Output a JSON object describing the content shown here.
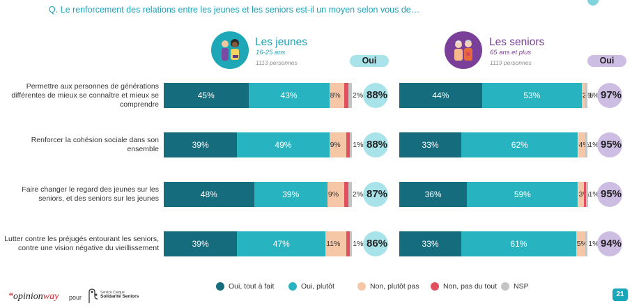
{
  "question": "Q. Le renforcement des relations entre les jeunes et les seniors est-il un moyen selon vous de…",
  "groups": [
    {
      "title": "Les jeunes",
      "subtitle": "16-25 ans",
      "count": "1113 personnes",
      "oui_label": "Oui",
      "oui_color": "#a8e3e9"
    },
    {
      "title": "Les seniors",
      "subtitle": "65 ans et plus",
      "count": "1119 personnes",
      "oui_label": "Oui",
      "oui_color": "#cdbde3"
    }
  ],
  "legend": [
    {
      "label": "Oui, tout à fait",
      "color": "#146c7d"
    },
    {
      "label": "Oui, plutôt",
      "color": "#27b4c0"
    },
    {
      "label": "Non, plutôt pas",
      "color": "#f6c7a6"
    },
    {
      "label": "Non, pas du tout",
      "color": "#e1505f"
    },
    {
      "label": "NSP",
      "color": "#c4c4c4"
    }
  ],
  "footer": {
    "brand": "opinionway",
    "pour": "pour",
    "partner_line1": "Service Civique",
    "partner_line2": "Solidarité Seniors",
    "page": "21"
  },
  "chart_data": [
    {
      "type": "bar",
      "title": "Les jeunes",
      "categories": [
        "Permettre aux personnes de générations différentes de mieux se connaître et mieux se comprendre",
        "Renforcer la cohésion sociale dans son ensemble",
        "Faire changer le regard des jeunes sur les seniors, et des seniors sur les jeunes",
        "Lutter contre les préjugés entourant les seniors, contre une vision négative du vieillissement"
      ],
      "series": [
        {
          "name": "Oui, tout à fait",
          "values": [
            45,
            39,
            48,
            39
          ]
        },
        {
          "name": "Oui, plutôt",
          "values": [
            43,
            49,
            39,
            47
          ]
        },
        {
          "name": "Non, plutôt pas",
          "values": [
            8,
            9,
            9,
            11
          ]
        },
        {
          "name": "Non, pas du tout",
          "values": [
            2,
            2,
            2,
            2
          ]
        },
        {
          "name": "NSP",
          "values": [
            2,
            1,
            2,
            1
          ]
        }
      ],
      "totals": [
        "88%",
        "88%",
        "87%",
        "86%"
      ],
      "segment_labels": [
        [
          "45%",
          "43%",
          "8%",
          "",
          "2%"
        ],
        [
          "39%",
          "49%",
          "9%",
          "",
          "1%"
        ],
        [
          "48%",
          "39%",
          "9%",
          "",
          "2%"
        ],
        [
          "39%",
          "47%",
          "11%",
          "",
          "1%"
        ]
      ]
    },
    {
      "type": "bar",
      "title": "Les seniors",
      "categories": [
        "Permettre aux personnes de générations différentes de mieux se connaître et mieux se comprendre",
        "Renforcer la cohésion sociale dans son ensemble",
        "Faire changer le regard des jeunes sur les seniors, et des seniors sur les jeunes",
        "Lutter contre les préjugés entourant les seniors, contre une vision négative du vieillissement"
      ],
      "series": [
        {
          "name": "Oui, tout à fait",
          "values": [
            44,
            33,
            36,
            33
          ]
        },
        {
          "name": "Oui, plutôt",
          "values": [
            53,
            62,
            59,
            61
          ]
        },
        {
          "name": "Non, plutôt pas",
          "values": [
            2,
            4,
            3,
            5
          ]
        },
        {
          "name": "Non, pas du tout",
          "values": [
            0,
            0,
            1,
            0
          ]
        },
        {
          "name": "NSP",
          "values": [
            1,
            1,
            1,
            1
          ]
        }
      ],
      "totals": [
        "97%",
        "95%",
        "95%",
        "94%"
      ],
      "segment_labels": [
        [
          "44%",
          "53%",
          "2%",
          "",
          "1%"
        ],
        [
          "33%",
          "62%",
          "4%",
          "",
          "1%"
        ],
        [
          "36%",
          "59%",
          "3%",
          "",
          "1%"
        ],
        [
          "33%",
          "61%",
          "5%",
          "",
          "1%"
        ]
      ]
    }
  ],
  "row_labels": [
    "Permettre aux personnes de générations différentes de mieux se connaître et mieux se comprendre",
    "Renforcer la cohésion sociale dans son ensemble",
    "Faire changer le regard des jeunes sur les seniors, et des seniors sur les jeunes",
    "Lutter contre les préjugés entourant les seniors, contre une vision négative du vieillissement"
  ]
}
